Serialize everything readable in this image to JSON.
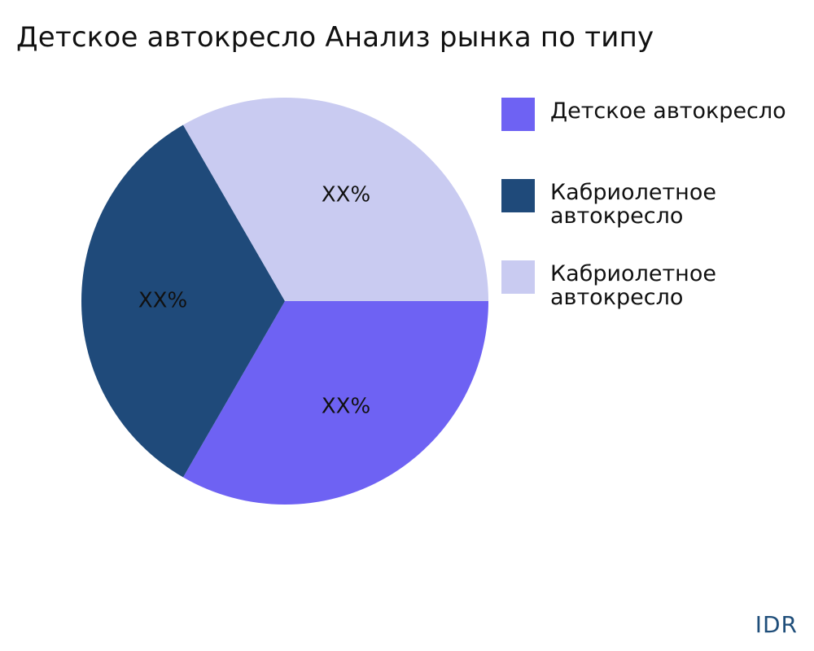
{
  "chart_data": {
    "type": "pie",
    "title": "Детское автокресло Анализ рынка по типу",
    "categories": [
      "Детское автокресло",
      "Кабриолетное автокресло",
      "Кабриолетное автокресло"
    ],
    "values": [
      33.3,
      33.3,
      33.3
    ],
    "data_labels": [
      "XX%",
      "XX%",
      "XX%"
    ],
    "colors": [
      "#6e62f3",
      "#1f4a7a",
      "#c9cbf1"
    ],
    "legend_position": "right"
  },
  "watermark": "IDR"
}
